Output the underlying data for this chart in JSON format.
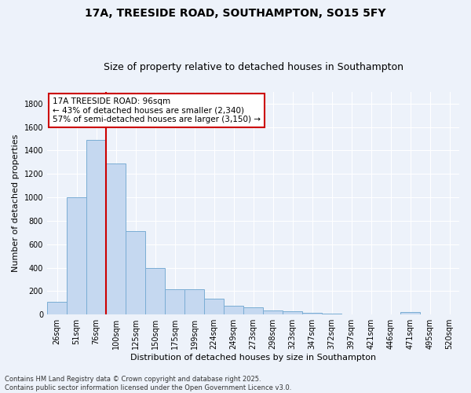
{
  "title": "17A, TREESIDE ROAD, SOUTHAMPTON, SO15 5FY",
  "subtitle": "Size of property relative to detached houses in Southampton",
  "xlabel": "Distribution of detached houses by size in Southampton",
  "ylabel": "Number of detached properties",
  "categories": [
    "26sqm",
    "51sqm",
    "76sqm",
    "100sqm",
    "125sqm",
    "150sqm",
    "175sqm",
    "199sqm",
    "224sqm",
    "249sqm",
    "273sqm",
    "298sqm",
    "323sqm",
    "347sqm",
    "372sqm",
    "397sqm",
    "421sqm",
    "446sqm",
    "471sqm",
    "495sqm",
    "520sqm"
  ],
  "values": [
    110,
    1000,
    1490,
    1290,
    710,
    400,
    215,
    215,
    135,
    75,
    65,
    35,
    30,
    15,
    5,
    0,
    0,
    0,
    20,
    0,
    0
  ],
  "bar_color": "#c5d8f0",
  "bar_edge_color": "#7aadd4",
  "bar_edge_width": 0.7,
  "annotation_text": "17A TREESIDE ROAD: 96sqm\n← 43% of detached houses are smaller (2,340)\n57% of semi-detached houses are larger (3,150) →",
  "annotation_box_color": "#ffffff",
  "annotation_box_edge": "#cc0000",
  "property_line_color": "#cc0000",
  "red_line_x": 2.5,
  "ylim": [
    0,
    1900
  ],
  "yticks": [
    0,
    200,
    400,
    600,
    800,
    1000,
    1200,
    1400,
    1600,
    1800
  ],
  "footer": "Contains HM Land Registry data © Crown copyright and database right 2025.\nContains public sector information licensed under the Open Government Licence v3.0.",
  "bg_color": "#edf2fa",
  "grid_color": "#ffffff",
  "title_fontsize": 10,
  "subtitle_fontsize": 9,
  "tick_fontsize": 7,
  "ylabel_fontsize": 8,
  "xlabel_fontsize": 8,
  "footer_fontsize": 6,
  "annotation_fontsize": 7.5
}
